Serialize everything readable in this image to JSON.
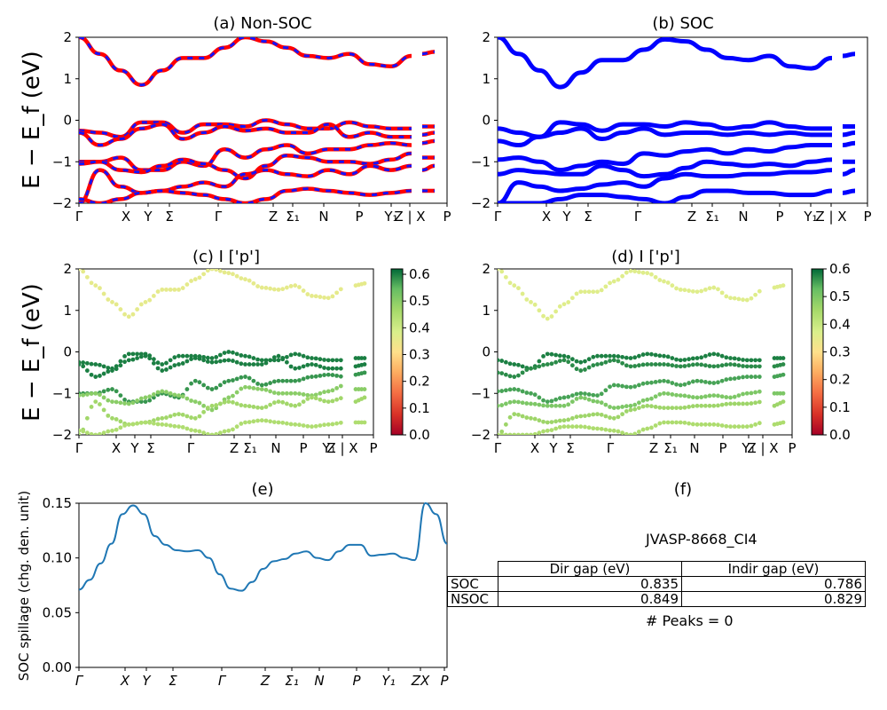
{
  "figure": {
    "ylabel_band": "E − E_f (eV)",
    "panels": {
      "a": {
        "title": "(a) Non-SOC"
      },
      "b": {
        "title": "(b) SOC"
      },
      "c": {
        "title": "(c)  I ['p']"
      },
      "d": {
        "title": "(d) I ['p']"
      },
      "e": {
        "title": "(e)"
      },
      "f": {
        "title": "(f)"
      }
    },
    "kpath_labels": [
      "Γ",
      "X",
      "Y",
      "Σ",
      "Γ",
      "Z",
      "Σ₁",
      "N",
      "P",
      "Y₁",
      "Z | X",
      "P"
    ],
    "kpath_labels_e": [
      "Γ",
      "X",
      "Y",
      "Σ",
      "Γ",
      "Z",
      "Σ₁",
      "N",
      "P",
      "Y₁",
      "ZX",
      "P"
    ]
  },
  "chart_data": [
    {
      "id": "a",
      "type": "line",
      "title": "(a) Non-SOC",
      "ylabel": "E − E_f (eV)",
      "ylim": [
        -2,
        2
      ],
      "yticks": [
        "2",
        "1",
        "0",
        "−1",
        "−2"
      ],
      "xticks": [
        "Γ",
        "X",
        "Y",
        "Σ",
        "Γ",
        "Z",
        "Σ₁",
        "N",
        "P",
        "Y₁",
        "Z | X",
        "P"
      ],
      "colors": {
        "up": "#ff0000",
        "down": "#1414ff"
      },
      "note": "Spin-up (red) and spin-down (blue dashed) bands overlap",
      "series": [
        {
          "values": [
            2.0,
            1.6,
            1.2,
            0.85,
            1.2,
            1.5,
            1.5,
            1.75,
            2.0,
            1.9,
            1.75,
            1.55,
            1.5,
            1.6,
            1.35,
            1.3,
            1.55,
            1.6,
            1.65
          ]
        },
        {
          "values": [
            -0.25,
            -0.3,
            -0.4,
            -0.05,
            -0.05,
            -0.3,
            -0.1,
            -0.1,
            -0.15,
            0.0,
            -0.1,
            -0.2,
            -0.2,
            -0.05,
            -0.15,
            -0.2,
            -0.2,
            -0.15,
            -0.15
          ]
        },
        {
          "values": [
            -0.3,
            -0.6,
            -0.45,
            -0.2,
            -0.1,
            -0.45,
            -0.3,
            -0.15,
            -0.25,
            -0.2,
            -0.3,
            -0.3,
            -0.1,
            -0.4,
            -0.3,
            -0.4,
            -0.4,
            -0.35,
            -0.3
          ]
        },
        {
          "values": [
            -1.0,
            -1.0,
            -0.9,
            -1.2,
            -1.2,
            -1.0,
            -1.1,
            -0.7,
            -0.9,
            -0.7,
            -0.6,
            -0.8,
            -0.7,
            -0.7,
            -0.6,
            -0.55,
            -0.6,
            -0.55,
            -0.5
          ]
        },
        {
          "values": [
            -1.05,
            -1.0,
            -1.2,
            -1.25,
            -1.1,
            -0.95,
            -1.05,
            -1.2,
            -1.4,
            -1.1,
            -0.85,
            -0.9,
            -1.0,
            -1.0,
            -1.05,
            -0.95,
            -0.8,
            -0.9,
            -0.9
          ]
        },
        {
          "values": [
            -2.0,
            -1.2,
            -1.6,
            -1.75,
            -1.7,
            -1.6,
            -1.5,
            -1.6,
            -1.3,
            -1.2,
            -1.3,
            -1.35,
            -1.2,
            -1.3,
            -1.1,
            -1.2,
            -1.1,
            -1.2,
            -1.1
          ]
        },
        {
          "values": [
            -1.9,
            -2.0,
            -1.9,
            -1.75,
            -1.7,
            -1.75,
            -1.8,
            -1.9,
            -2.0,
            -1.9,
            -1.7,
            -1.65,
            -1.7,
            -1.75,
            -1.8,
            -1.75,
            -1.7,
            -1.7,
            -1.7
          ]
        }
      ]
    },
    {
      "id": "b",
      "type": "line",
      "title": "(b) SOC",
      "ylim": [
        -2,
        2
      ],
      "yticks": [
        "2",
        "1",
        "0",
        "−1",
        "−2"
      ],
      "xticks": [
        "Γ",
        "X",
        "Y",
        "Σ",
        "Γ",
        "Z",
        "Σ₁",
        "N",
        "P",
        "Y₁",
        "Z | X",
        "P"
      ],
      "colors": {
        "line": "#0000ff"
      },
      "series": [
        {
          "values": [
            2.0,
            1.6,
            1.2,
            0.8,
            1.15,
            1.45,
            1.45,
            1.7,
            1.95,
            1.9,
            1.7,
            1.5,
            1.45,
            1.55,
            1.3,
            1.25,
            1.5,
            1.55,
            1.6
          ]
        },
        {
          "values": [
            -0.2,
            -0.3,
            -0.4,
            -0.05,
            -0.1,
            -0.25,
            -0.1,
            -0.1,
            -0.15,
            -0.05,
            -0.1,
            -0.2,
            -0.15,
            -0.05,
            -0.15,
            -0.2,
            -0.2,
            -0.15,
            -0.15
          ]
        },
        {
          "values": [
            -0.5,
            -0.6,
            -0.4,
            -0.3,
            -0.2,
            -0.45,
            -0.3,
            -0.2,
            -0.35,
            -0.3,
            -0.3,
            -0.35,
            -0.3,
            -0.35,
            -0.3,
            -0.35,
            -0.35,
            -0.35,
            -0.3
          ]
        },
        {
          "values": [
            -0.95,
            -0.9,
            -1.0,
            -1.2,
            -1.1,
            -1.0,
            -1.05,
            -0.8,
            -0.85,
            -0.75,
            -0.7,
            -0.8,
            -0.7,
            -0.75,
            -0.65,
            -0.6,
            -0.6,
            -0.6,
            -0.55
          ]
        },
        {
          "values": [
            -1.3,
            -1.2,
            -1.25,
            -1.3,
            -1.3,
            -1.1,
            -1.2,
            -1.35,
            -1.3,
            -1.15,
            -1.0,
            -1.05,
            -1.1,
            -1.05,
            -1.1,
            -1.0,
            -0.95,
            -1.0,
            -1.0
          ]
        },
        {
          "values": [
            -2.0,
            -1.5,
            -1.6,
            -1.7,
            -1.65,
            -1.55,
            -1.5,
            -1.6,
            -1.4,
            -1.3,
            -1.35,
            -1.35,
            -1.3,
            -1.3,
            -1.25,
            -1.25,
            -1.2,
            -1.3,
            -1.2
          ]
        },
        {
          "values": [
            -2.0,
            -2.0,
            -2.0,
            -1.9,
            -1.8,
            -1.8,
            -1.85,
            -1.9,
            -2.0,
            -1.85,
            -1.7,
            -1.7,
            -1.75,
            -1.75,
            -1.8,
            -1.8,
            -1.7,
            -1.75,
            -1.7
          ]
        }
      ]
    },
    {
      "id": "c",
      "type": "scatter",
      "title": "(c)  I ['p']",
      "ylabel": "E − E_f (eV)",
      "ylim": [
        -2,
        2
      ],
      "yticks": [
        "2",
        "1",
        "0",
        "−1",
        "−2"
      ],
      "xticks": [
        "Γ",
        "X",
        "Y",
        "Σ",
        "Γ",
        "Z",
        "Σ₁",
        "N",
        "P",
        "Y₁",
        "Z | X",
        "P"
      ],
      "colorbar": {
        "min": 0.0,
        "max": 0.62,
        "ticks": [
          "0.0",
          "0.1",
          "0.2",
          "0.3",
          "0.4",
          "0.5",
          "0.6"
        ]
      },
      "series": [
        {
          "weight": 0.36,
          "values": [
            2.0,
            1.6,
            1.2,
            0.85,
            1.2,
            1.5,
            1.5,
            1.75,
            2.0,
            1.9,
            1.75,
            1.55,
            1.5,
            1.6,
            1.35,
            1.3,
            1.55,
            1.6,
            1.65
          ]
        },
        {
          "weight": 0.6,
          "values": [
            -0.25,
            -0.3,
            -0.4,
            -0.05,
            -0.05,
            -0.3,
            -0.1,
            -0.1,
            -0.15,
            0.0,
            -0.1,
            -0.2,
            -0.2,
            -0.05,
            -0.15,
            -0.2,
            -0.2,
            -0.15,
            -0.15
          ]
        },
        {
          "weight": 0.6,
          "values": [
            -0.3,
            -0.6,
            -0.45,
            -0.2,
            -0.1,
            -0.45,
            -0.3,
            -0.15,
            -0.25,
            -0.2,
            -0.3,
            -0.3,
            -0.1,
            -0.4,
            -0.3,
            -0.4,
            -0.4,
            -0.35,
            -0.3
          ]
        },
        {
          "weight": 0.58,
          "values": [
            -1.0,
            -1.0,
            -0.9,
            -1.2,
            -1.2,
            -1.0,
            -1.1,
            -0.7,
            -0.9,
            -0.7,
            -0.6,
            -0.8,
            -0.7,
            -0.7,
            -0.6,
            -0.55,
            -0.6,
            -0.55,
            -0.5
          ]
        },
        {
          "weight": 0.5,
          "values": [
            -1.05,
            -1.0,
            -1.2,
            -1.25,
            -1.1,
            -0.95,
            -1.05,
            -1.2,
            -1.4,
            -1.1,
            -0.85,
            -0.9,
            -1.0,
            -1.0,
            -1.05,
            -0.95,
            -0.8,
            -0.9,
            -0.9
          ]
        },
        {
          "weight": 0.47,
          "values": [
            -2.0,
            -1.2,
            -1.6,
            -1.75,
            -1.7,
            -1.6,
            -1.5,
            -1.6,
            -1.3,
            -1.2,
            -1.3,
            -1.35,
            -1.2,
            -1.3,
            -1.1,
            -1.2,
            -1.1,
            -1.2,
            -1.1
          ]
        },
        {
          "weight": 0.45,
          "values": [
            -1.9,
            -2.0,
            -1.9,
            -1.75,
            -1.7,
            -1.75,
            -1.8,
            -1.9,
            -2.0,
            -1.9,
            -1.7,
            -1.65,
            -1.7,
            -1.75,
            -1.8,
            -1.75,
            -1.7,
            -1.7,
            -1.7
          ]
        }
      ]
    },
    {
      "id": "d",
      "type": "scatter",
      "title": "(d) I ['p']",
      "ylim": [
        -2,
        2
      ],
      "yticks": [
        "2",
        "1",
        "0",
        "−1",
        "−2"
      ],
      "xticks": [
        "Γ",
        "X",
        "Y",
        "Σ",
        "Γ",
        "Z",
        "Σ₁",
        "N",
        "P",
        "Y₁",
        "Z | X",
        "P"
      ],
      "colorbar": {
        "min": 0.0,
        "max": 0.6,
        "ticks": [
          "0.0",
          "0.1",
          "0.2",
          "0.3",
          "0.4",
          "0.5",
          "0.6"
        ]
      },
      "series": [
        {
          "weight": 0.36,
          "values": [
            2.0,
            1.6,
            1.2,
            0.8,
            1.15,
            1.45,
            1.45,
            1.7,
            1.95,
            1.9,
            1.7,
            1.5,
            1.45,
            1.55,
            1.3,
            1.25,
            1.5,
            1.55,
            1.6
          ]
        },
        {
          "weight": 0.58,
          "values": [
            -0.2,
            -0.3,
            -0.4,
            -0.05,
            -0.1,
            -0.25,
            -0.1,
            -0.1,
            -0.15,
            -0.05,
            -0.1,
            -0.2,
            -0.15,
            -0.05,
            -0.15,
            -0.2,
            -0.2,
            -0.15,
            -0.15
          ]
        },
        {
          "weight": 0.57,
          "values": [
            -0.5,
            -0.6,
            -0.4,
            -0.3,
            -0.2,
            -0.45,
            -0.3,
            -0.2,
            -0.35,
            -0.3,
            -0.3,
            -0.35,
            -0.3,
            -0.35,
            -0.3,
            -0.35,
            -0.35,
            -0.35,
            -0.3
          ]
        },
        {
          "weight": 0.55,
          "values": [
            -0.95,
            -0.9,
            -1.0,
            -1.2,
            -1.1,
            -1.0,
            -1.05,
            -0.8,
            -0.85,
            -0.75,
            -0.7,
            -0.8,
            -0.7,
            -0.75,
            -0.65,
            -0.6,
            -0.6,
            -0.6,
            -0.55
          ]
        },
        {
          "weight": 0.5,
          "values": [
            -1.3,
            -1.2,
            -1.25,
            -1.3,
            -1.3,
            -1.1,
            -1.2,
            -1.35,
            -1.3,
            -1.15,
            -1.0,
            -1.05,
            -1.1,
            -1.05,
            -1.1,
            -1.0,
            -0.95,
            -1.0,
            -1.0
          ]
        },
        {
          "weight": 0.46,
          "values": [
            -2.0,
            -1.5,
            -1.6,
            -1.7,
            -1.65,
            -1.55,
            -1.5,
            -1.6,
            -1.4,
            -1.3,
            -1.35,
            -1.35,
            -1.3,
            -1.3,
            -1.25,
            -1.25,
            -1.2,
            -1.3,
            -1.2
          ]
        },
        {
          "weight": 0.44,
          "values": [
            -2.0,
            -2.0,
            -2.0,
            -1.9,
            -1.8,
            -1.8,
            -1.85,
            -1.9,
            -2.0,
            -1.85,
            -1.7,
            -1.7,
            -1.75,
            -1.75,
            -1.8,
            -1.8,
            -1.7,
            -1.75,
            -1.7
          ]
        }
      ]
    },
    {
      "id": "e",
      "type": "line",
      "title": "(e)",
      "ylabel": "SOC spillage (chg. den. unit)",
      "ylim": [
        0.0,
        0.15
      ],
      "yticks": [
        "0.15",
        "0.10",
        "0.05",
        "0.00"
      ],
      "xticks": [
        "Γ",
        "X",
        "Y",
        "Σ",
        "Γ",
        "Z",
        "Σ₁",
        "N",
        "P",
        "Y₁",
        "ZX",
        "P"
      ],
      "colors": {
        "line": "#1f77b4"
      },
      "values": [
        0.071,
        0.08,
        0.095,
        0.113,
        0.14,
        0.148,
        0.14,
        0.12,
        0.112,
        0.107,
        0.106,
        0.107,
        0.1,
        0.085,
        0.072,
        0.07,
        0.078,
        0.09,
        0.097,
        0.099,
        0.104,
        0.106,
        0.1,
        0.098,
        0.106,
        0.112,
        0.112,
        0.102,
        0.103,
        0.104,
        0.1,
        0.098,
        0.15,
        0.14,
        0.113
      ]
    },
    {
      "id": "f",
      "type": "table",
      "title": "(f)",
      "material": "JVASP-8668_CI4",
      "columns": [
        "Dir gap (eV)",
        "Indir gap (eV)"
      ],
      "rows": [
        {
          "label": "SOC",
          "values": [
            "0.835",
            "0.786"
          ]
        },
        {
          "label": "NSOC",
          "values": [
            "0.849",
            "0.829"
          ]
        }
      ],
      "peaks": "# Peaks = 0"
    }
  ]
}
